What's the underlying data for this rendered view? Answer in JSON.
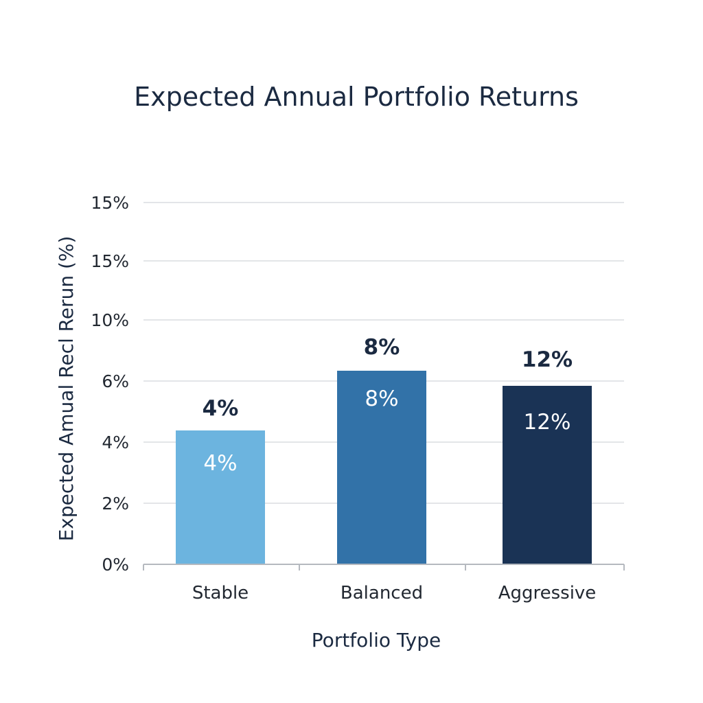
{
  "chart_data": {
    "type": "bar",
    "title": "Expected Annual Portfolio Returns",
    "xlabel": "Portfolio Type",
    "ylabel": "Expected  Amual Recl Rerun (%)",
    "categories": [
      "Stable",
      "Balanced",
      "Aggressive"
    ],
    "values": [
      4,
      8,
      12
    ],
    "value_labels": [
      "4%",
      "8%",
      "12%"
    ],
    "y_tick_labels": [
      "0%",
      "2%",
      "4%",
      "6%",
      "10%",
      "15%",
      "15%"
    ],
    "ylim": [
      0,
      15
    ],
    "grid": true,
    "legend": "none",
    "colors": [
      "#6cb4df",
      "#3272a8",
      "#1a3355"
    ]
  }
}
